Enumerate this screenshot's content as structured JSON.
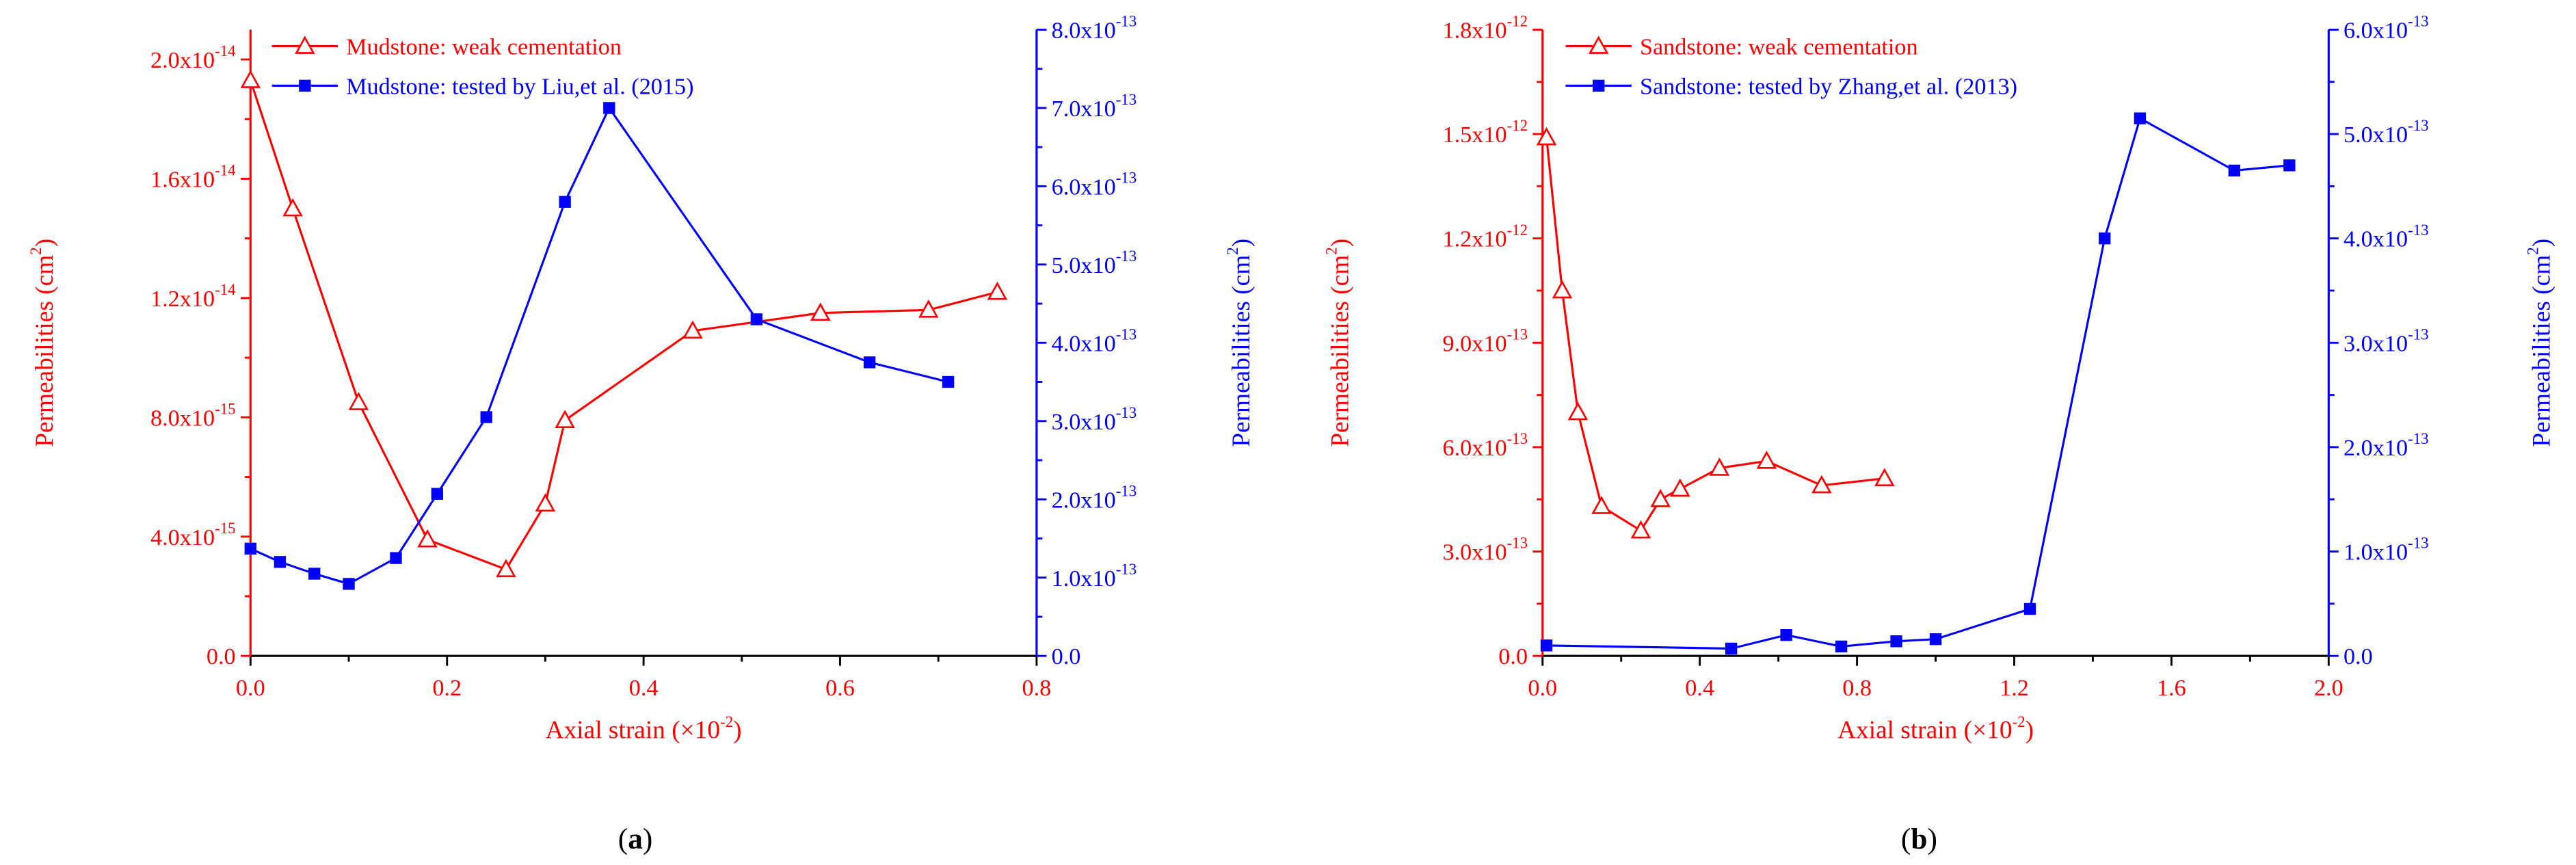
{
  "chart_data": [
    {
      "type": "line",
      "panel_label": "a",
      "xlabel": "Axial strain (×10",
      "xlabel_exp": "-2",
      "xlabel_suffix": ")",
      "xlim": [
        0,
        0.8
      ],
      "x_ticks": [
        0.0,
        0.2,
        0.4,
        0.6,
        0.8
      ],
      "x_tick_labels": [
        "0.0",
        "0.2",
        "0.4",
        "0.6",
        "0.8"
      ],
      "y_left": {
        "label": "Permeabilities (cm",
        "label_exp": "2",
        "label_suffix": ")",
        "color": "#ff0000",
        "lim": [
          0,
          2.1e-14
        ],
        "ticks": [
          0,
          4e-15,
          8e-15,
          1.2e-14,
          1.6e-14,
          2e-14
        ],
        "tick_mantissas": [
          "0.0",
          "4.0x10",
          "8.0x10",
          "1.2x10",
          "1.6x10",
          "2.0x10"
        ],
        "tick_exps": [
          "",
          "-15",
          "-15",
          "-14",
          "-14",
          "-14"
        ]
      },
      "y_right": {
        "label": "Permeabilities (cm",
        "label_exp": "2",
        "label_suffix": ")",
        "color": "#0000ff",
        "lim": [
          0,
          8e-13
        ],
        "ticks": [
          0,
          1e-13,
          2e-13,
          3e-13,
          4e-13,
          5e-13,
          6e-13,
          7e-13,
          8e-13
        ],
        "tick_mantissas": [
          "0.0",
          "1.0x10",
          "2.0x10",
          "3.0x10",
          "4.0x10",
          "5.0x10",
          "6.0x10",
          "7.0x10",
          "8.0x10"
        ],
        "tick_exps": [
          "",
          "-13",
          "-13",
          "-13",
          "-13",
          "-13",
          "-13",
          "-13",
          "-13"
        ]
      },
      "legend_position": "top-left",
      "series": [
        {
          "name": "Mudstone: weak cementation",
          "axis": "left",
          "color": "#ff0000",
          "marker": "open-triangle",
          "points": [
            [
              0.0,
              1.93e-14
            ],
            [
              0.043,
              1.5e-14
            ],
            [
              0.11,
              8.5e-15
            ],
            [
              0.18,
              3.9e-15
            ],
            [
              0.26,
              2.9e-15
            ],
            [
              0.3,
              5.1e-15
            ],
            [
              0.32,
              7.9e-15
            ],
            [
              0.45,
              1.09e-14
            ],
            [
              0.58,
              1.15e-14
            ],
            [
              0.69,
              1.16e-14
            ],
            [
              0.76,
              1.22e-14
            ]
          ]
        },
        {
          "name": "Mudstone: tested by Liu,et al. (2015)",
          "axis": "right",
          "color": "#0000ff",
          "marker": "filled-square",
          "points": [
            [
              0.0,
              1.37e-13
            ],
            [
              0.03,
              1.2e-13
            ],
            [
              0.065,
              1.05e-13
            ],
            [
              0.1,
              9.2e-14
            ],
            [
              0.148,
              1.25e-13
            ],
            [
              0.19,
              2.07e-13
            ],
            [
              0.24,
              3.05e-13
            ],
            [
              0.32,
              5.8e-13
            ],
            [
              0.365,
              7e-13
            ],
            [
              0.515,
              4.3e-13
            ],
            [
              0.63,
              3.75e-13
            ],
            [
              0.71,
              3.5e-13
            ]
          ]
        }
      ]
    },
    {
      "type": "line",
      "panel_label": "b",
      "xlabel": "Axial strain (×10",
      "xlabel_exp": "-2",
      "xlabel_suffix": ")",
      "xlim": [
        0,
        2.0
      ],
      "x_ticks": [
        0.0,
        0.4,
        0.8,
        1.2,
        1.6,
        2.0
      ],
      "x_tick_labels": [
        "0.0",
        "0.4",
        "0.8",
        "1.2",
        "1.6",
        "2.0"
      ],
      "y_left": {
        "label": "Permeabilities (cm",
        "label_exp": "2",
        "label_suffix": ")",
        "color": "#ff0000",
        "lim": [
          0,
          1.8e-12
        ],
        "ticks": [
          0,
          3e-13,
          6e-13,
          9e-13,
          1.2e-12,
          1.5e-12,
          1.8e-12
        ],
        "tick_mantissas": [
          "0.0",
          "3.0x10",
          "6.0x10",
          "9.0x10",
          "1.2x10",
          "1.5x10",
          "1.8x10"
        ],
        "tick_exps": [
          "",
          "-13",
          "-13",
          "-13",
          "-12",
          "-12",
          "-12"
        ]
      },
      "y_right": {
        "label": "Permeabilities (cm",
        "label_exp": "2",
        "label_suffix": ")",
        "color": "#0000ff",
        "lim": [
          0,
          6e-13
        ],
        "ticks": [
          0,
          1e-13,
          2e-13,
          3e-13,
          4e-13,
          5e-13,
          6e-13
        ],
        "tick_mantissas": [
          "0.0",
          "1.0x10",
          "2.0x10",
          "3.0x10",
          "4.0x10",
          "5.0x10",
          "6.0x10"
        ],
        "tick_exps": [
          "",
          "-13",
          "-13",
          "-13",
          "-13",
          "-13",
          "-13"
        ]
      },
      "legend_position": "top-left",
      "series": [
        {
          "name": "Sandstone: weak cementation",
          "axis": "left",
          "color": "#ff0000",
          "marker": "open-triangle",
          "points": [
            [
              0.01,
              1.49e-12
            ],
            [
              0.05,
              1.05e-12
            ],
            [
              0.09,
              7e-13
            ],
            [
              0.15,
              4.3e-13
            ],
            [
              0.25,
              3.6e-13
            ],
            [
              0.3,
              4.5e-13
            ],
            [
              0.35,
              4.8e-13
            ],
            [
              0.45,
              5.4e-13
            ],
            [
              0.57,
              5.6e-13
            ],
            [
              0.71,
              4.9e-13
            ],
            [
              0.87,
              5.1e-13
            ]
          ]
        },
        {
          "name": "Sandstone: tested by Zhang,et al. (2013)",
          "axis": "right",
          "color": "#0000ff",
          "marker": "filled-square",
          "points": [
            [
              0.01,
              1e-14
            ],
            [
              0.48,
              7e-15
            ],
            [
              0.62,
              2e-14
            ],
            [
              0.76,
              9e-15
            ],
            [
              0.9,
              1.4e-14
            ],
            [
              1.0,
              1.6e-14
            ],
            [
              1.24,
              4.5e-14
            ],
            [
              1.43,
              4e-13
            ],
            [
              1.52,
              5.15e-13
            ],
            [
              1.76,
              4.65e-13
            ],
            [
              1.9,
              4.7e-13
            ]
          ]
        }
      ]
    }
  ]
}
